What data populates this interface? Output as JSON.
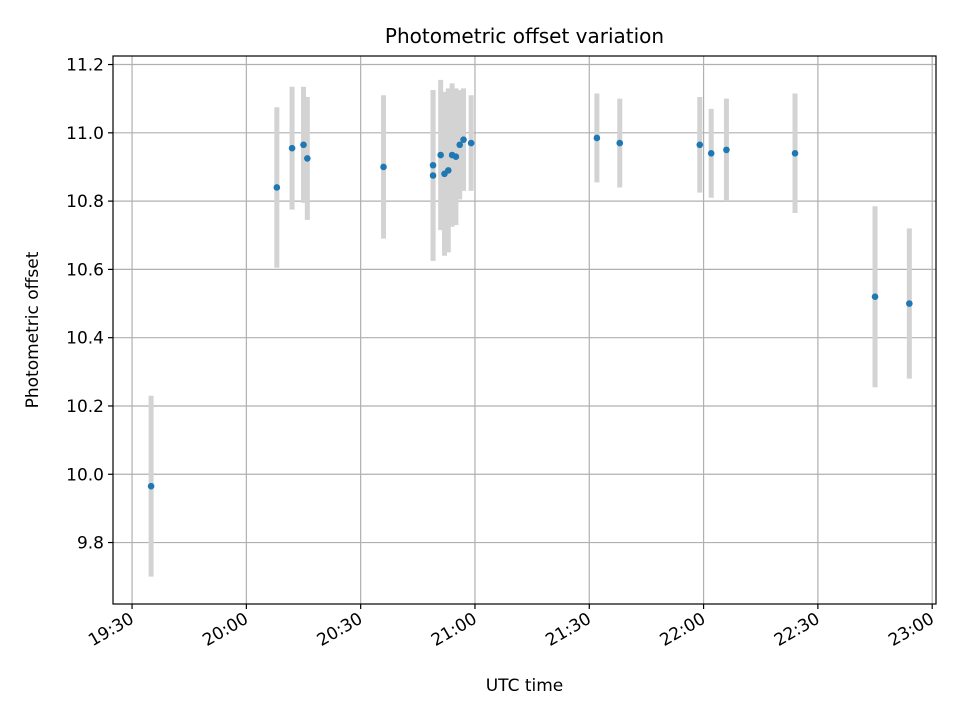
{
  "chart_data": {
    "type": "scatter",
    "title": "Photometric offset variation",
    "xlabel": "UTC time",
    "ylabel": "Photometric offset",
    "x_ticks": [
      "19:30",
      "20:00",
      "20:30",
      "21:00",
      "21:30",
      "22:00",
      "22:30",
      "23:00"
    ],
    "y_ticks": [
      "9.8",
      "10.0",
      "10.2",
      "10.4",
      "10.6",
      "10.8",
      "11.0",
      "11.2"
    ],
    "xlim": [
      "19:25",
      "23:01"
    ],
    "ylim": [
      9.62,
      11.225
    ],
    "grid": true,
    "colors": {
      "point": "#1f77b4",
      "errorbar": "#d3d3d3",
      "grid": "#b0b0b0"
    },
    "points": [
      {
        "time": "19:35",
        "value": 9.965,
        "err": 0.265
      },
      {
        "time": "20:08",
        "value": 10.84,
        "err": 0.235
      },
      {
        "time": "20:12",
        "value": 10.955,
        "err": 0.18
      },
      {
        "time": "20:15",
        "value": 10.965,
        "err": 0.17
      },
      {
        "time": "20:16",
        "value": 10.925,
        "err": 0.18
      },
      {
        "time": "20:36",
        "value": 10.9,
        "err": 0.21
      },
      {
        "time": "20:49",
        "value": 10.875,
        "err": 0.25
      },
      {
        "time": "20:49",
        "value": 10.905,
        "err": 0.22
      },
      {
        "time": "20:51",
        "value": 10.935,
        "err": 0.22
      },
      {
        "time": "20:52",
        "value": 10.88,
        "err": 0.24
      },
      {
        "time": "20:53",
        "value": 10.89,
        "err": 0.24
      },
      {
        "time": "20:54",
        "value": 10.935,
        "err": 0.21
      },
      {
        "time": "20:55",
        "value": 10.93,
        "err": 0.2
      },
      {
        "time": "20:56",
        "value": 10.965,
        "err": 0.16
      },
      {
        "time": "20:57",
        "value": 10.98,
        "err": 0.15
      },
      {
        "time": "20:59",
        "value": 10.97,
        "err": 0.14
      },
      {
        "time": "21:32",
        "value": 10.985,
        "err": 0.13
      },
      {
        "time": "21:38",
        "value": 10.97,
        "err": 0.13
      },
      {
        "time": "21:59",
        "value": 10.965,
        "err": 0.14
      },
      {
        "time": "22:02",
        "value": 10.94,
        "err": 0.13
      },
      {
        "time": "22:06",
        "value": 10.95,
        "err": 0.15
      },
      {
        "time": "22:24",
        "value": 10.94,
        "err": 0.175
      },
      {
        "time": "22:45",
        "value": 10.52,
        "err": 0.265
      },
      {
        "time": "22:54",
        "value": 10.5,
        "err": 0.22
      }
    ]
  }
}
